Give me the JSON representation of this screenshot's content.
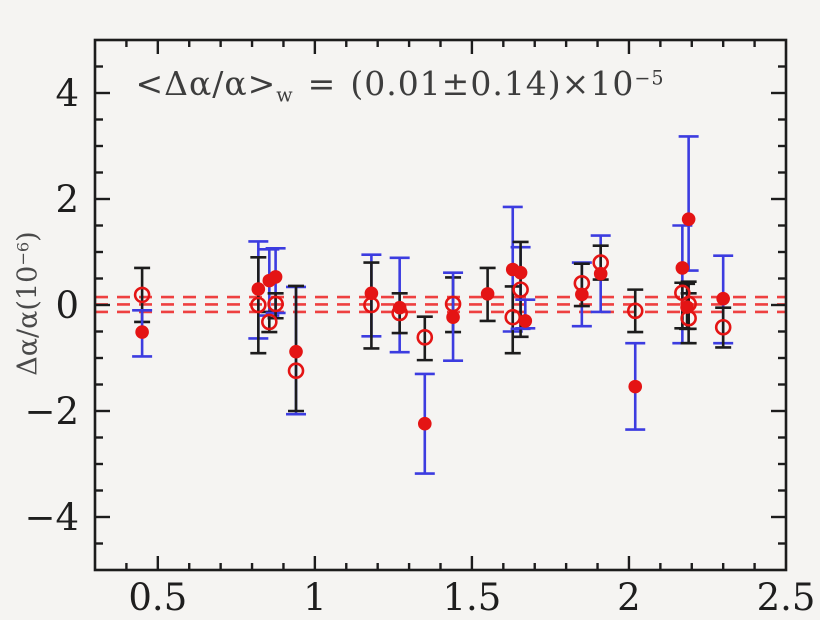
{
  "figure": {
    "background": "#f5f4f2",
    "annotation": {
      "lhs": "<Δα/α>",
      "sub": "w",
      "eq": "=",
      "rhs": "(0.01±0.14)×10",
      "exp": "−5"
    },
    "y_axis_label": {
      "prefix": "Δα/α(10",
      "exp": "−6",
      "suffix": ")"
    }
  },
  "chart_data": {
    "type": "scatter",
    "title": "<Δα/α>_w = (0.01±0.14)×10^−5",
    "xlabel": "",
    "ylabel": "Δα/α(10^−6)",
    "xlim": [
      0.3,
      2.5
    ],
    "ylim": [
      -5,
      5
    ],
    "grid": false,
    "x_major_ticks": [
      0.5,
      1.0,
      1.5,
      2.0,
      2.5
    ],
    "x_tick_labels": [
      "0.5",
      "1",
      "1.5",
      "2",
      "2.5"
    ],
    "x_minor_step": 0.1,
    "y_major_ticks": [
      -4,
      -2,
      0,
      2,
      4
    ],
    "y_tick_labels": [
      "−4",
      "−2",
      "0",
      "2",
      "4"
    ],
    "y_minor_step": 0.5,
    "weighted_mean_lines": {
      "center": 0.01,
      "upper": 0.15,
      "lower": -0.13
    },
    "colors": {
      "marker_red": "#e41414",
      "bar_blue": "#3c3ce0",
      "bar_black": "#1c1c1c",
      "dash_red": "#ee4040",
      "frame": "#1c1c1c",
      "tick_label": "#1e1e1e"
    },
    "points": [
      {
        "x": 0.45,
        "y": 0.19,
        "lo": -0.32,
        "hi": 0.7,
        "marker": "open",
        "bar": "black"
      },
      {
        "x": 0.45,
        "y": -0.51,
        "lo": -0.97,
        "hi": -0.1,
        "marker": "filled",
        "bar": "blue"
      },
      {
        "x": 0.82,
        "y": 0.3,
        "lo": -0.63,
        "hi": 1.2,
        "marker": "filled",
        "bar": "blue"
      },
      {
        "x": 0.82,
        "y": 0.0,
        "lo": -0.91,
        "hi": 0.9,
        "marker": "open",
        "bar": "black"
      },
      {
        "x": 0.855,
        "y": 0.46,
        "lo": -0.2,
        "hi": 1.05,
        "marker": "filled",
        "bar": "blue"
      },
      {
        "x": 0.855,
        "y": -0.32,
        "lo": -0.51,
        "hi": -0.13,
        "marker": "open",
        "bar": "black"
      },
      {
        "x": 0.875,
        "y": 0.53,
        "lo": -0.15,
        "hi": 1.07,
        "marker": "filled",
        "bar": "blue"
      },
      {
        "x": 0.875,
        "y": 0.02,
        "lo": -0.25,
        "hi": 0.22,
        "marker": "open",
        "bar": "black"
      },
      {
        "x": 0.94,
        "y": -0.88,
        "lo": -2.06,
        "hi": 0.34,
        "marker": "filled",
        "bar": "blue"
      },
      {
        "x": 0.94,
        "y": -1.24,
        "lo": -2.0,
        "hi": 0.36,
        "marker": "open",
        "bar": "black"
      },
      {
        "x": 1.18,
        "y": 0.22,
        "lo": -0.59,
        "hi": 0.95,
        "marker": "filled",
        "bar": "blue"
      },
      {
        "x": 1.18,
        "y": 0.0,
        "lo": -0.82,
        "hi": 0.8,
        "marker": "open",
        "bar": "black"
      },
      {
        "x": 1.27,
        "y": -0.05,
        "lo": -0.89,
        "hi": 0.89,
        "marker": "filled",
        "bar": "blue"
      },
      {
        "x": 1.27,
        "y": -0.15,
        "lo": -0.53,
        "hi": 0.22,
        "marker": "open",
        "bar": "black"
      },
      {
        "x": 1.35,
        "y": -0.61,
        "lo": -1.04,
        "hi": -0.22,
        "marker": "open",
        "bar": "black"
      },
      {
        "x": 1.35,
        "y": -2.24,
        "lo": -3.18,
        "hi": -1.3,
        "marker": "filled",
        "bar": "blue"
      },
      {
        "x": 1.44,
        "y": 0.02,
        "lo": -0.51,
        "hi": 0.52,
        "marker": "open",
        "bar": "black"
      },
      {
        "x": 1.44,
        "y": -0.23,
        "lo": -1.05,
        "hi": 0.61,
        "marker": "filled",
        "bar": "blue"
      },
      {
        "x": 1.55,
        "y": 0.21,
        "lo": -0.3,
        "hi": 0.7,
        "marker": "filled",
        "bar": "black"
      },
      {
        "x": 1.63,
        "y": 0.67,
        "lo": -0.5,
        "hi": 1.85,
        "marker": "filled",
        "bar": "blue"
      },
      {
        "x": 1.63,
        "y": -0.23,
        "lo": -0.91,
        "hi": 0.35,
        "marker": "open",
        "bar": "black"
      },
      {
        "x": 1.655,
        "y": 0.61,
        "lo": -0.45,
        "hi": 1.09,
        "marker": "filled",
        "bar": "blue"
      },
      {
        "x": 1.655,
        "y": 0.29,
        "lo": -0.6,
        "hi": 1.19,
        "marker": "open",
        "bar": "black"
      },
      {
        "x": 1.67,
        "y": -0.3,
        "lo": -0.44,
        "hi": 0.1,
        "marker": "filled",
        "bar": "blue"
      },
      {
        "x": 1.85,
        "y": 0.2,
        "lo": -0.4,
        "hi": 0.8,
        "marker": "filled",
        "bar": "blue"
      },
      {
        "x": 1.85,
        "y": 0.41,
        "lo": -0.02,
        "hi": 0.78,
        "marker": "open",
        "bar": "black"
      },
      {
        "x": 1.91,
        "y": 0.59,
        "lo": -0.13,
        "hi": 1.31,
        "marker": "filled",
        "bar": "blue"
      },
      {
        "x": 1.91,
        "y": 0.8,
        "lo": 0.48,
        "hi": 1.12,
        "marker": "open",
        "bar": "black"
      },
      {
        "x": 2.02,
        "y": -0.11,
        "lo": -0.51,
        "hi": 0.29,
        "marker": "open",
        "bar": "black"
      },
      {
        "x": 2.02,
        "y": -1.54,
        "lo": -2.35,
        "hi": -0.72,
        "marker": "filled",
        "bar": "blue"
      },
      {
        "x": 2.17,
        "y": 0.7,
        "lo": -0.72,
        "hi": 1.5,
        "marker": "filled",
        "bar": "blue"
      },
      {
        "x": 2.17,
        "y": 0.23,
        "lo": -0.44,
        "hi": 0.42,
        "marker": "open",
        "bar": "black"
      },
      {
        "x": 2.19,
        "y": 1.62,
        "lo": 0.65,
        "hi": 3.18,
        "marker": "filled",
        "bar": "blue"
      },
      {
        "x": 2.19,
        "y": 0.02,
        "lo": -0.45,
        "hi": 0.44,
        "marker": "open",
        "bar": "black"
      },
      {
        "x": 2.185,
        "y": -0.04,
        "lo": -0.45,
        "hi": 0.4,
        "marker": "filled",
        "bar": "black"
      },
      {
        "x": 2.19,
        "y": -0.25,
        "lo": -0.72,
        "hi": 0.22,
        "marker": "open",
        "bar": "black"
      },
      {
        "x": 2.3,
        "y": 0.12,
        "lo": -0.72,
        "hi": 0.93,
        "marker": "filled",
        "bar": "blue"
      },
      {
        "x": 2.3,
        "y": -0.42,
        "lo": -0.8,
        "hi": -0.05,
        "marker": "open",
        "bar": "black"
      }
    ]
  }
}
